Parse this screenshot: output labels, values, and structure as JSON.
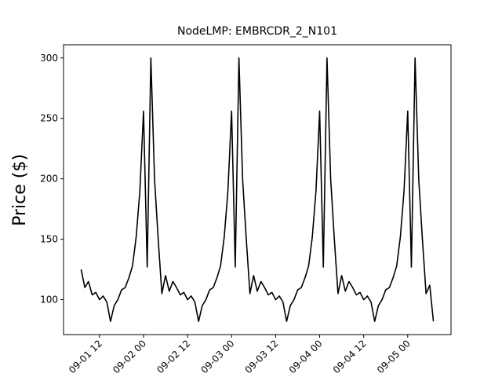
{
  "chart_data": {
    "type": "line",
    "title": "NodeLMP: EMBRCDR_2_N101",
    "y_label": "Price ($)",
    "x": [
      "09-01 07",
      "09-01 08",
      "09-01 09",
      "09-01 10",
      "09-01 11",
      "09-01 12",
      "09-01 13",
      "09-01 14",
      "09-01 15",
      "09-01 16",
      "09-01 17",
      "09-01 18",
      "09-01 19",
      "09-01 20",
      "09-01 21",
      "09-01 22",
      "09-01 23",
      "09-02 00",
      "09-02 01",
      "09-02 02",
      "09-02 03",
      "09-02 04",
      "09-02 05",
      "09-02 06",
      "09-02 07",
      "09-02 08",
      "09-02 09",
      "09-02 10",
      "09-02 11",
      "09-02 12",
      "09-02 13",
      "09-02 14",
      "09-02 15",
      "09-02 16",
      "09-02 17",
      "09-02 18",
      "09-02 19",
      "09-02 20",
      "09-02 21",
      "09-02 22",
      "09-02 23",
      "09-03 00",
      "09-03 01",
      "09-03 02",
      "09-03 03",
      "09-03 04",
      "09-03 05",
      "09-03 06",
      "09-03 07",
      "09-03 08",
      "09-03 09",
      "09-03 10",
      "09-03 11",
      "09-03 12",
      "09-03 13",
      "09-03 14",
      "09-03 15",
      "09-03 16",
      "09-03 17",
      "09-03 18",
      "09-03 19",
      "09-03 20",
      "09-03 21",
      "09-03 22",
      "09-03 23",
      "09-04 00",
      "09-04 01",
      "09-04 02",
      "09-04 03",
      "09-04 04",
      "09-04 05",
      "09-04 06",
      "09-04 07",
      "09-04 08",
      "09-04 09",
      "09-04 10",
      "09-04 11",
      "09-04 12",
      "09-04 13",
      "09-04 14",
      "09-04 15",
      "09-04 16",
      "09-04 17",
      "09-04 18",
      "09-04 19",
      "09-04 20",
      "09-04 21",
      "09-04 22",
      "09-04 23",
      "09-05 00",
      "09-05 01",
      "09-05 02",
      "09-05 03",
      "09-05 04",
      "09-05 05",
      "09-05 06",
      "09-05 07"
    ],
    "series": [
      {
        "name": "EMBRCDR_2_N101",
        "color": "#000000",
        "values": [
          125,
          110,
          115,
          104,
          106,
          100,
          103,
          98,
          82,
          95,
          100,
          108,
          110,
          118,
          128,
          152,
          190,
          256,
          127,
          300,
          200,
          150,
          105,
          120,
          107,
          115,
          110,
          104,
          106,
          100,
          103,
          98,
          82,
          95,
          100,
          108,
          110,
          118,
          128,
          152,
          190,
          256,
          127,
          300,
          200,
          150,
          105,
          120,
          107,
          115,
          110,
          104,
          106,
          100,
          103,
          98,
          82,
          95,
          100,
          108,
          110,
          118,
          128,
          152,
          190,
          256,
          127,
          300,
          200,
          150,
          105,
          120,
          107,
          115,
          110,
          104,
          106,
          100,
          103,
          98,
          82,
          95,
          100,
          108,
          110,
          118,
          128,
          152,
          190,
          256,
          127,
          300,
          200,
          150,
          105,
          112,
          82
        ]
      }
    ],
    "xlim": [
      "09-01 02:12",
      "09-05 11:48"
    ],
    "xticks": [
      "09-01 12",
      "09-02 00",
      "09-02 12",
      "09-03 00",
      "09-03 12",
      "09-04 00",
      "09-04 12",
      "09-05 00"
    ],
    "ylim": [
      71.1,
      310.9
    ],
    "yticks": [
      100,
      150,
      200,
      250,
      300
    ],
    "grid": false
  }
}
